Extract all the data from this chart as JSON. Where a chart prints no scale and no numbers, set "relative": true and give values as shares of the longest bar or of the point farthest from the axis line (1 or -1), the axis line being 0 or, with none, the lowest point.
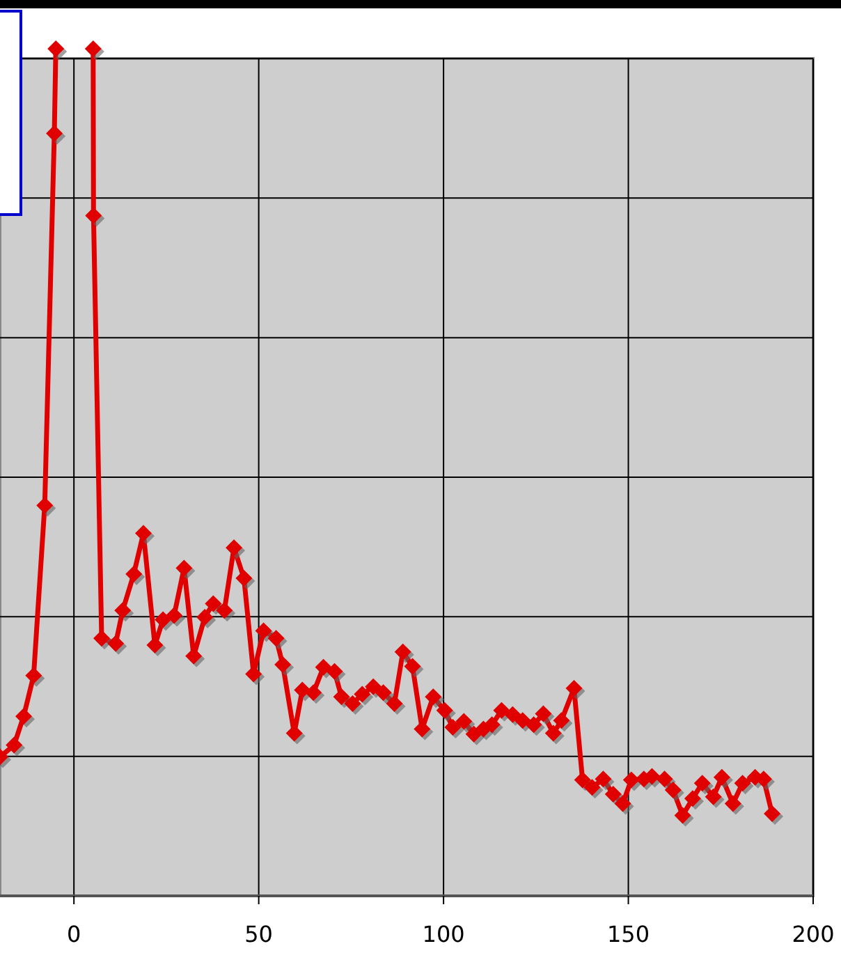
{
  "chart_data": {
    "type": "line",
    "relative": true,
    "xlim": [
      -20,
      200
    ],
    "xticks": [
      0,
      50,
      100,
      150,
      200
    ],
    "grid": true,
    "marker": "diamond",
    "x": [
      -20,
      -16.2,
      -13.6,
      -10.9,
      -7.9,
      -5.3,
      -4.9,
      0,
      5.2,
      5.3,
      7.5,
      11.3,
      13.2,
      16.2,
      18.8,
      21.9,
      24.1,
      27.1,
      29.8,
      32.4,
      35.4,
      37.7,
      40.7,
      43.3,
      46,
      48.6,
      51.3,
      54.7,
      56.5,
      59.6,
      61.8,
      64.8,
      67.5,
      70.5,
      72.4,
      75.4,
      78,
      81,
      83.7,
      86.7,
      89,
      91.6,
      94.2,
      97.2,
      100.3,
      102.5,
      105.5,
      108.2,
      110.8,
      113.1,
      115.7,
      118.7,
      121.4,
      124.4,
      127,
      129.7,
      131.9,
      135.3,
      137.6,
      140.2,
      143.2,
      145.9,
      148.5,
      150.8,
      154.2,
      156.4,
      159.8,
      162.1,
      164.7,
      167.4,
      170,
      173,
      175.3,
      178.3,
      180.9,
      184.3,
      186.6,
      188.9
    ],
    "series": [
      {
        "color": "#e00000",
        "values": [
          0.164,
          0.178,
          0.212,
          0.26,
          0.461,
          0.9,
          1,
          null,
          1,
          0.803,
          0.304,
          0.298,
          0.337,
          0.38,
          0.428,
          0.296,
          0.326,
          0.331,
          0.387,
          0.283,
          0.329,
          0.345,
          0.337,
          0.411,
          0.375,
          0.262,
          0.313,
          0.304,
          0.273,
          0.192,
          0.243,
          0.24,
          0.27,
          0.265,
          0.235,
          0.227,
          0.238,
          0.247,
          0.24,
          0.227,
          0.288,
          0.271,
          0.197,
          0.235,
          0.219,
          0.199,
          0.206,
          0.191,
          0.197,
          0.202,
          0.219,
          0.214,
          0.207,
          0.202,
          0.215,
          0.192,
          0.207,
          0.245,
          0.137,
          0.128,
          0.138,
          0.12,
          0.109,
          0.137,
          0.138,
          0.141,
          0.138,
          0.125,
          0.095,
          0.115,
          0.133,
          0.117,
          0.14,
          0.109,
          0.133,
          0.14,
          0.138,
          0.097
        ]
      }
    ]
  }
}
